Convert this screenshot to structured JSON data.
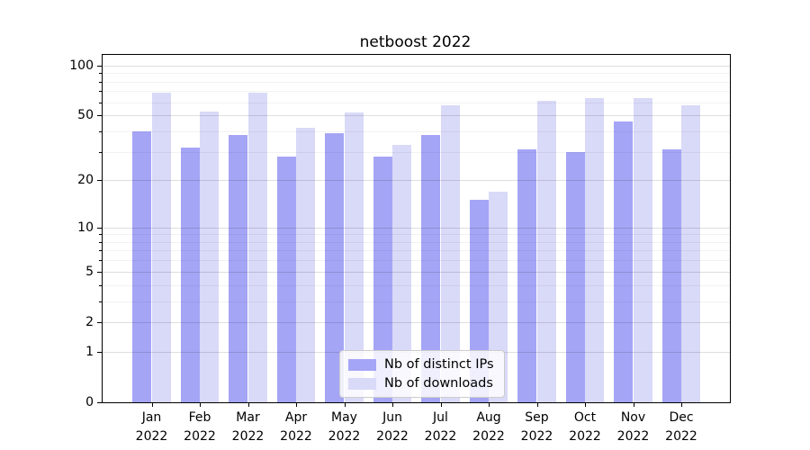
{
  "title": "netboost 2022",
  "chart_data": {
    "type": "bar",
    "title": "netboost 2022",
    "categories": [
      "Jan 2022",
      "Feb 2022",
      "Mar 2022",
      "Apr 2022",
      "May 2022",
      "Jun 2022",
      "Jul 2022",
      "Aug 2022",
      "Sep 2022",
      "Oct 2022",
      "Nov 2022",
      "Dec 2022"
    ],
    "series": [
      {
        "name": "Nb of distinct IPs",
        "color": "#a5a5f6",
        "values": [
          40,
          32,
          38,
          28,
          39,
          28,
          38,
          15,
          31,
          30,
          46,
          31
        ]
      },
      {
        "name": "Nb of downloads",
        "color": "#d9d9f8",
        "values": [
          69,
          53,
          69,
          42,
          52,
          33,
          58,
          17,
          61,
          64,
          64,
          58
        ]
      }
    ],
    "xlabel": "",
    "ylabel": "",
    "yscale": "log1p",
    "ylim": [
      0,
      116
    ],
    "y_major_ticks": [
      0,
      1,
      2,
      5,
      10,
      20,
      50,
      100
    ],
    "y_minor_ticks": [
      3,
      4,
      6,
      7,
      8,
      9,
      30,
      40,
      60,
      70,
      80,
      90
    ],
    "grid": "both",
    "legend_position": "lower center",
    "bar_mode": "grouped"
  },
  "colors": {
    "major_grid": "rgba(0,0,0,0.13)",
    "minor_grid": "rgba(0,0,0,0.05)",
    "axis": "#000000",
    "background": "#ffffff"
  }
}
